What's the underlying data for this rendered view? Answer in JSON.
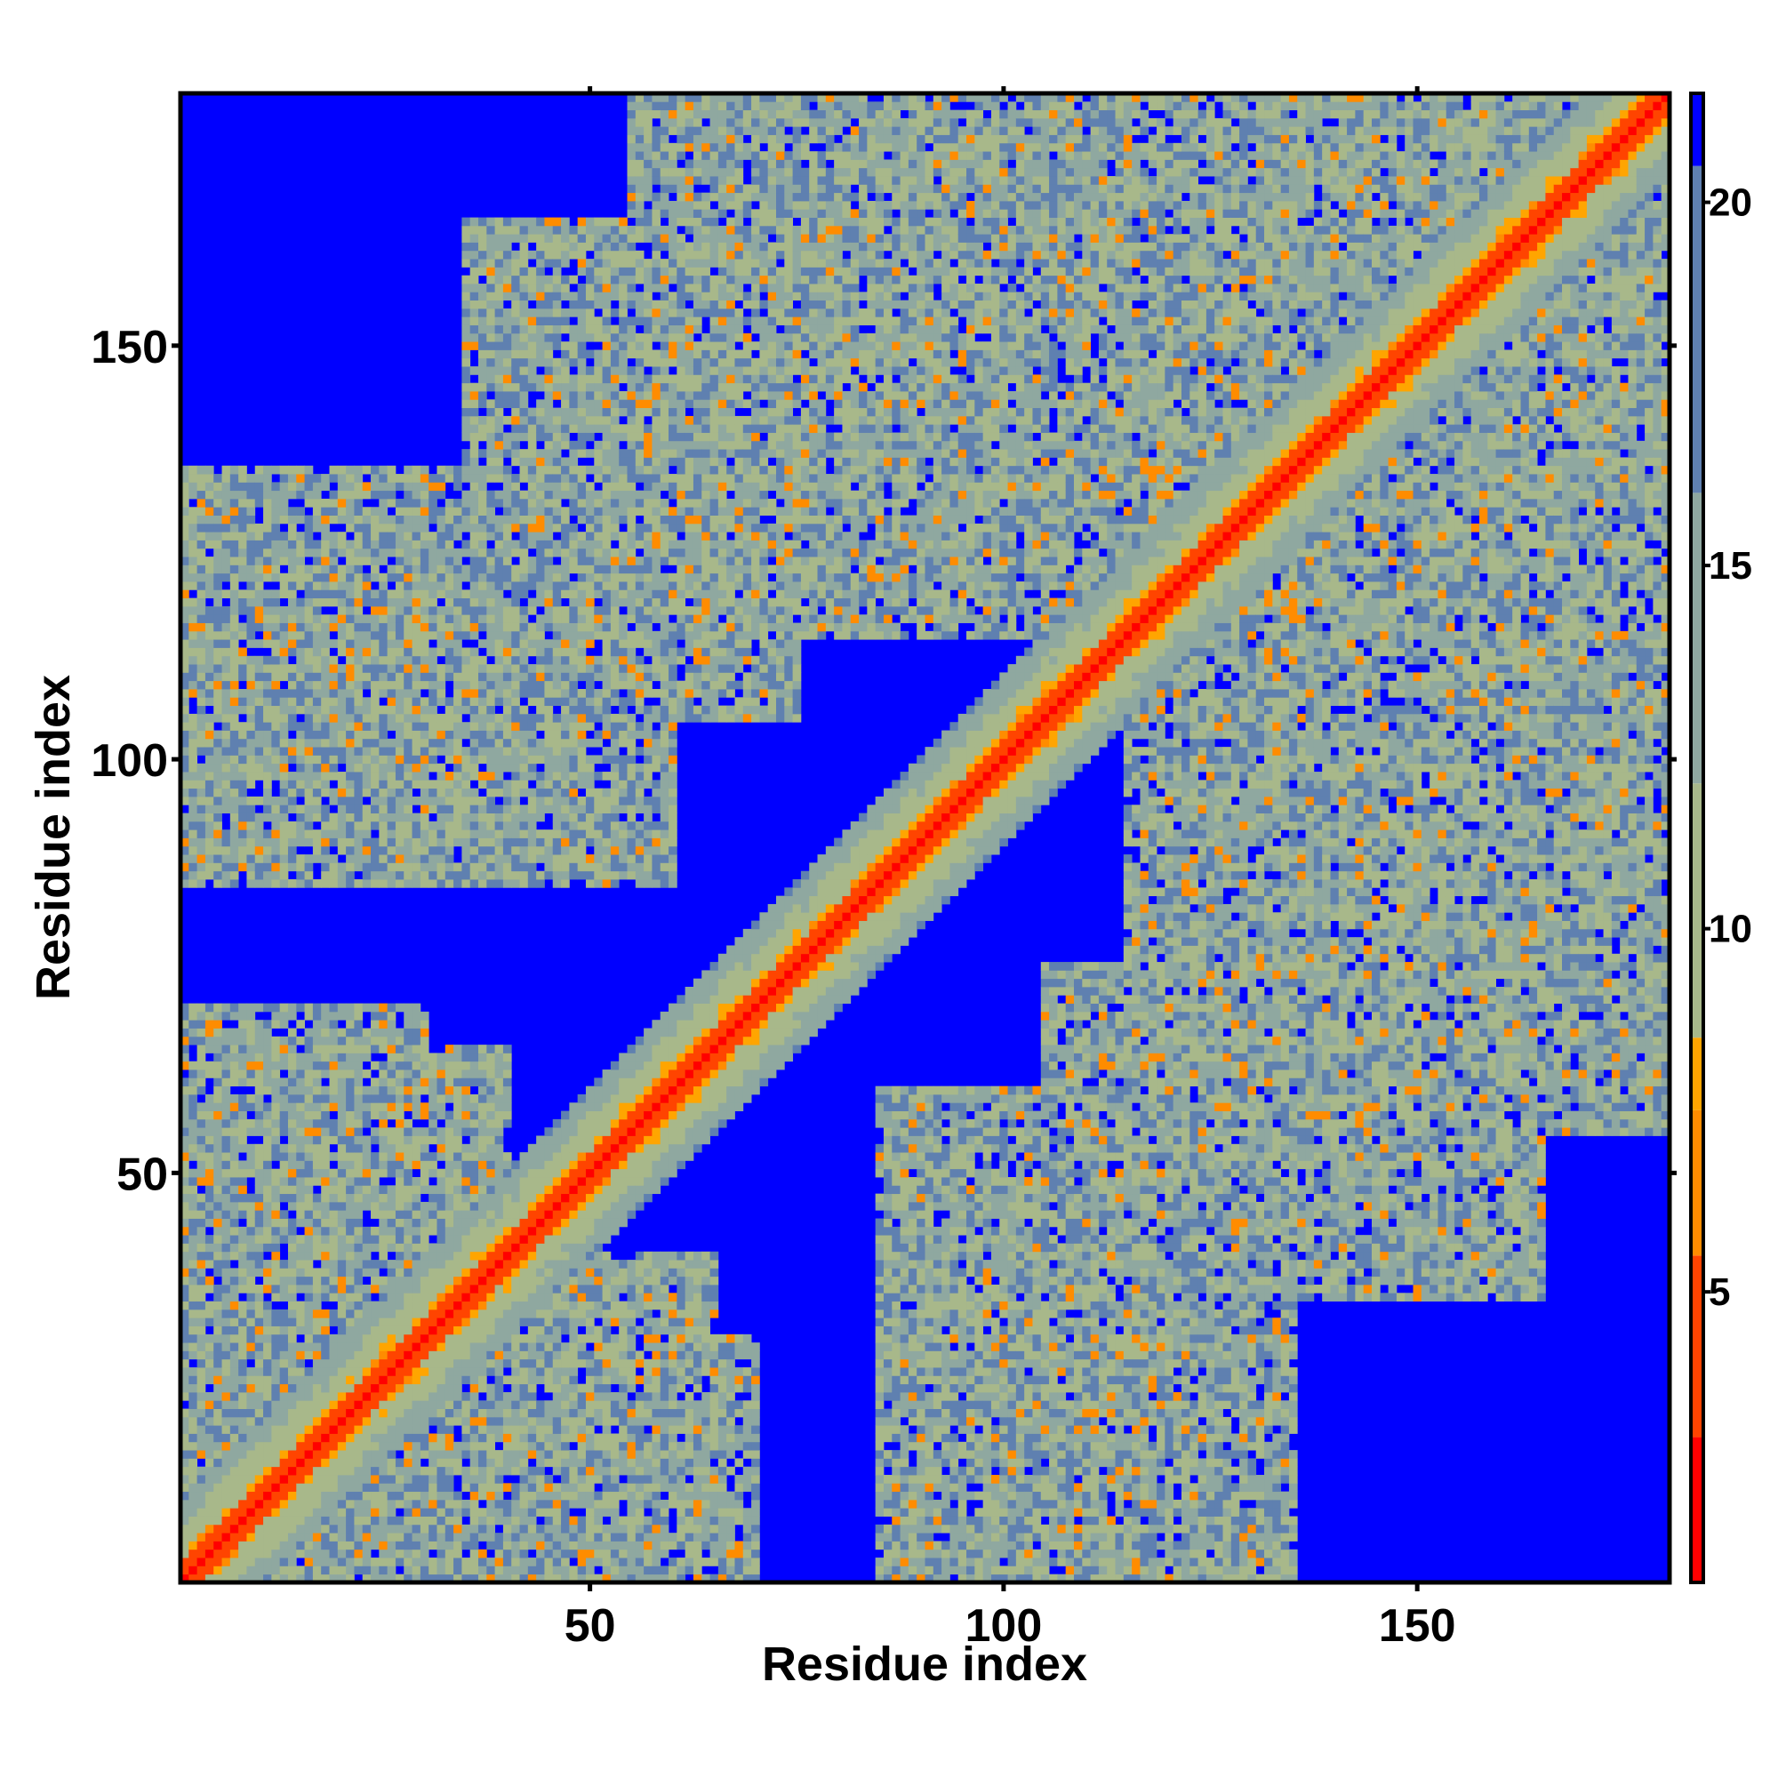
{
  "chart_data": {
    "type": "heatmap",
    "description": "Residue-residue distance map (contact map) of a ~180-residue protein",
    "title": "",
    "xlabel": "Residue index",
    "ylabel": "Residue index",
    "n_residues": 180,
    "xlim": [
      1,
      180
    ],
    "ylim": [
      1,
      180
    ],
    "x_ticks": [
      50,
      100,
      150
    ],
    "y_ticks": [
      50,
      100,
      150
    ],
    "x_tick_labels": [
      "50",
      "100",
      "150"
    ],
    "y_tick_labels": [
      "50",
      "100",
      "150"
    ],
    "colorbar": {
      "range": [
        1,
        21.5
      ],
      "ticks": [
        5,
        10,
        15,
        20
      ],
      "tick_labels": [
        "5",
        "10",
        "15",
        "20"
      ],
      "colors": [
        {
          "from": 1,
          "to": 3,
          "color": "#ff0000"
        },
        {
          "from": 3,
          "to": 5.5,
          "color": "#ff4400"
        },
        {
          "from": 5.5,
          "to": 7.5,
          "color": "#ff8c00"
        },
        {
          "from": 7.5,
          "to": 8.5,
          "color": "#ffa500"
        },
        {
          "from": 8.5,
          "to": 12,
          "color": "#a8b88a"
        },
        {
          "from": 12,
          "to": 16,
          "color": "#8fa8a0"
        },
        {
          "from": 16,
          "to": 20.5,
          "color": "#5f80b0"
        },
        {
          "from": 20.5,
          "to": 21.5,
          "color": "#0000ff"
        }
      ],
      "background_color": "#0000ff"
    },
    "structure": {
      "diagonal_band_halfwidth": 6,
      "contact_regions": [
        {
          "x_range": [
            1,
            30
          ],
          "y_range": [
            1,
            70
          ],
          "mean_distance": 13
        },
        {
          "x_range": [
            30,
            65
          ],
          "y_range": [
            1,
            40
          ],
          "mean_distance": 13
        },
        {
          "x_range": [
            5,
            60
          ],
          "y_range": [
            85,
            125
          ],
          "mean_distance": 13
        },
        {
          "x_range": [
            35,
            75
          ],
          "y_range": [
            105,
            165
          ],
          "mean_distance": 13
        },
        {
          "x_range": [
            60,
            120
          ],
          "y_range": [
            145,
            175
          ],
          "mean_distance": 13
        },
        {
          "x_range": [
            85,
            135
          ],
          "y_range": [
            1,
            55
          ],
          "mean_distance": 13
        },
        {
          "x_range": [
            115,
            180
          ],
          "y_range": [
            55,
            130
          ],
          "mean_distance": 13
        },
        {
          "x_range": [
            130,
            180
          ],
          "y_range": [
            130,
            180
          ],
          "mean_distance": 13
        }
      ]
    }
  }
}
